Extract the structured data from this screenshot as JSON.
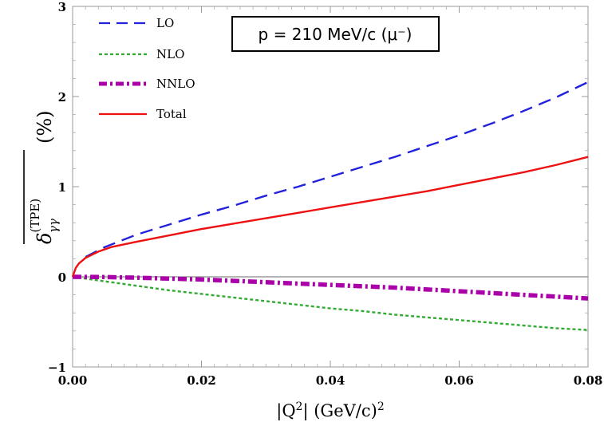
{
  "chart_data": {
    "type": "line",
    "xlabel": "|Q²| (GeV/c)²",
    "ylabel": "δ̅γγ^(TPE) (%)",
    "ylabel_parts": {
      "symbol": "δ",
      "subscript": "γγ",
      "superscript": "(TPE)",
      "unit": "(%)"
    },
    "xlabel_parts": {
      "prefix": "|Q",
      "sup": "2",
      "suffix": "| (GeV/c)",
      "sup2": "2"
    },
    "xlim": [
      0,
      0.08
    ],
    "ylim": [
      -1,
      3
    ],
    "x_ticks": [
      0,
      0.02,
      0.04,
      0.06,
      0.08
    ],
    "x_tick_labels": [
      "0.00",
      "0.02",
      "0.04",
      "0.06",
      "0.08"
    ],
    "y_ticks": [
      -1,
      0,
      1,
      2,
      3
    ],
    "y_tick_labels": [
      "−1",
      "0",
      "1",
      "2",
      "3"
    ],
    "annotation": "p = 210 MeV/c (μ⁻)",
    "legend_position": "top-left",
    "series": [
      {
        "name": "LO",
        "color": "#2222dd",
        "style": "dashed",
        "x": [
          0.002,
          0.005,
          0.01,
          0.015,
          0.02,
          0.025,
          0.03,
          0.035,
          0.04,
          0.045,
          0.05,
          0.055,
          0.06,
          0.065,
          0.07,
          0.075,
          0.08
        ],
        "y": [
          0.22,
          0.33,
          0.47,
          0.58,
          0.69,
          0.79,
          0.9,
          1.0,
          1.11,
          1.22,
          1.33,
          1.45,
          1.57,
          1.7,
          1.84,
          1.99,
          2.16
        ]
      },
      {
        "name": "NLO",
        "color": "#33aa33",
        "style": "dotted",
        "x": [
          0,
          0.005,
          0.01,
          0.015,
          0.02,
          0.025,
          0.03,
          0.035,
          0.04,
          0.045,
          0.05,
          0.055,
          0.06,
          0.065,
          0.07,
          0.075,
          0.08
        ],
        "y": [
          0,
          -0.05,
          -0.1,
          -0.15,
          -0.19,
          -0.23,
          -0.27,
          -0.31,
          -0.35,
          -0.38,
          -0.42,
          -0.45,
          -0.48,
          -0.51,
          -0.54,
          -0.57,
          -0.59
        ]
      },
      {
        "name": "NNLO",
        "color": "#aa00aa",
        "style": "dashdot",
        "x": [
          0,
          0.005,
          0.01,
          0.015,
          0.02,
          0.025,
          0.03,
          0.035,
          0.04,
          0.045,
          0.05,
          0.055,
          0.06,
          0.065,
          0.07,
          0.075,
          0.08
        ],
        "y": [
          0,
          -0.003,
          -0.01,
          -0.02,
          -0.03,
          -0.045,
          -0.06,
          -0.075,
          -0.09,
          -0.105,
          -0.12,
          -0.14,
          -0.16,
          -0.18,
          -0.2,
          -0.22,
          -0.24
        ]
      },
      {
        "name": "Total",
        "color": "#ee1111",
        "style": "solid",
        "x": [
          0,
          0.0005,
          0.001,
          0.002,
          0.004,
          0.006,
          0.008,
          0.01,
          0.015,
          0.02,
          0.025,
          0.03,
          0.035,
          0.04,
          0.045,
          0.05,
          0.055,
          0.06,
          0.065,
          0.07,
          0.075,
          0.08
        ],
        "y": [
          0,
          0.1,
          0.15,
          0.21,
          0.28,
          0.33,
          0.36,
          0.39,
          0.46,
          0.53,
          0.59,
          0.65,
          0.71,
          0.77,
          0.83,
          0.89,
          0.95,
          1.02,
          1.09,
          1.16,
          1.24,
          1.33
        ]
      }
    ]
  }
}
